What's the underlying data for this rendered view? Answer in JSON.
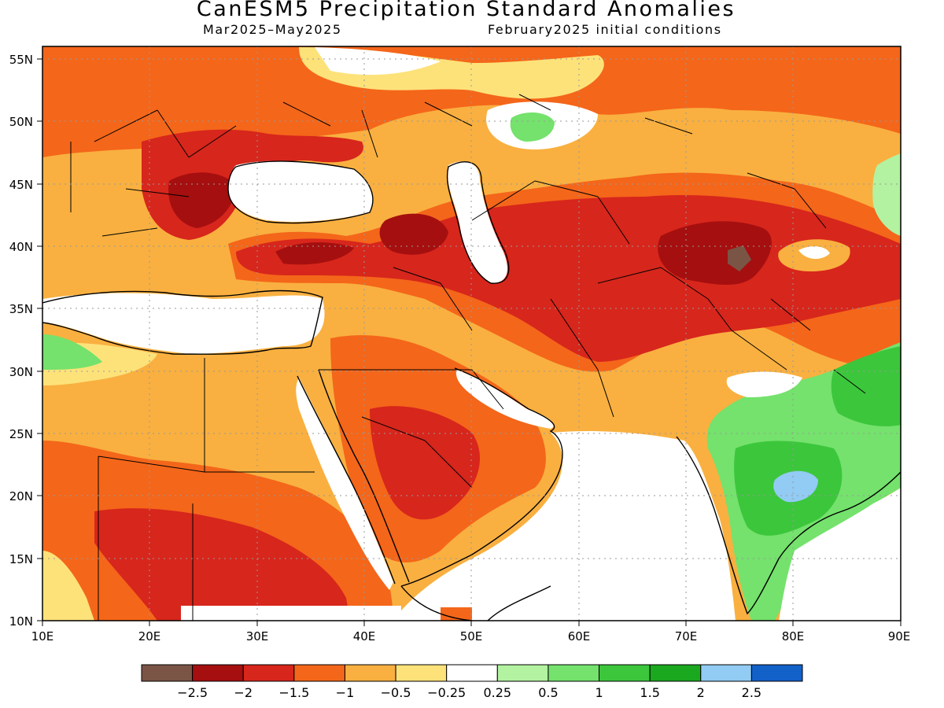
{
  "title": "CanESM5 Precipitation Standard Anomalies",
  "subtitle_left": "Mar2025–May2025",
  "subtitle_right": "February2025 initial conditions",
  "map": {
    "lon_range": [
      10,
      90
    ],
    "lat_range": [
      10,
      56
    ],
    "lon_ticks": [
      "10E",
      "20E",
      "30E",
      "40E",
      "50E",
      "60E",
      "70E",
      "80E",
      "90E"
    ],
    "lat_ticks": [
      "10N",
      "15N",
      "20N",
      "25N",
      "30N",
      "35N",
      "40N",
      "45N",
      "50N",
      "55N"
    ],
    "grid": true
  },
  "colorbar": {
    "colors": [
      "#7a5546",
      "#a50f0f",
      "#d7261c",
      "#f4661a",
      "#f9b040",
      "#fde27a",
      "#ffffff",
      "#b2f2a0",
      "#74e26c",
      "#3cc63c",
      "#1aa81e",
      "#92cbf3",
      "#1261c9"
    ],
    "labels": [
      "−2.5",
      "−2",
      "−1.5",
      "−1",
      "−0.5",
      "−0.25",
      "0.25",
      "0.5",
      "1",
      "1.5",
      "2",
      "2.5"
    ]
  }
}
